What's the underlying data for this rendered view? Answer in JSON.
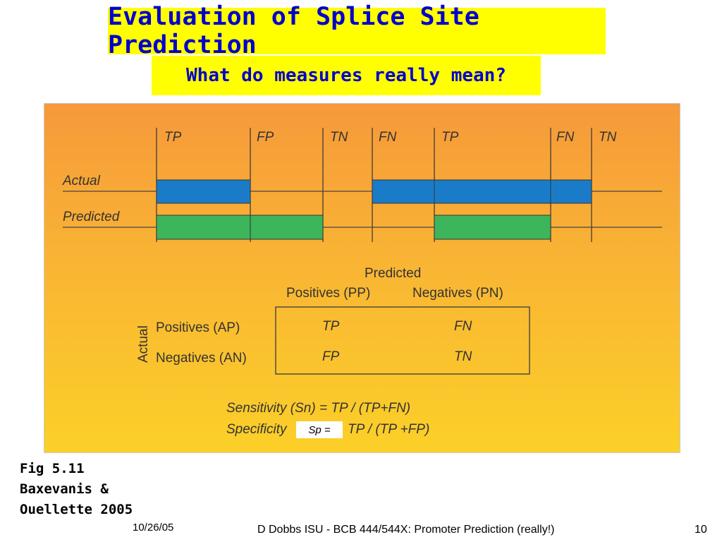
{
  "slide": {
    "title": "Evaluation of Splice Site Prediction",
    "subtitle": "What do measures really mean?"
  },
  "figure": {
    "segment_labels": [
      "TP",
      "FP",
      "TN",
      "FN",
      "TP",
      "FN",
      "TN"
    ],
    "row_labels": {
      "actual": "Actual",
      "predicted": "Predicted"
    },
    "matrix": {
      "header_top": "Predicted",
      "col_positives": "Positives (PP)",
      "col_negatives": "Negatives (PN)",
      "side_label": "Actual",
      "row_positives": "Positives (AP)",
      "row_negatives": "Negatives (AN)",
      "cells": {
        "r1c1": "TP",
        "r1c2": "FN",
        "r2c1": "FP",
        "r2c2": "TN"
      }
    },
    "formulas": {
      "sensitivity": "Sensitivity (Sn) = TP / (TP+FN)",
      "specificity_prefix": "Specificity",
      "specificity_rest": "TP / (TP +FP)",
      "overlay": "Sp ="
    },
    "colors": {
      "actual_bar": "#1a7cc9",
      "predicted_bar": "#3cb55c"
    }
  },
  "caption": [
    "Fig 5.11",
    "Baxevanis &",
    "Ouellette 2005"
  ],
  "footer": {
    "date": "10/26/05",
    "center": "D Dobbs ISU - BCB 444/544X: Promoter Prediction (really!)",
    "page": "10"
  }
}
